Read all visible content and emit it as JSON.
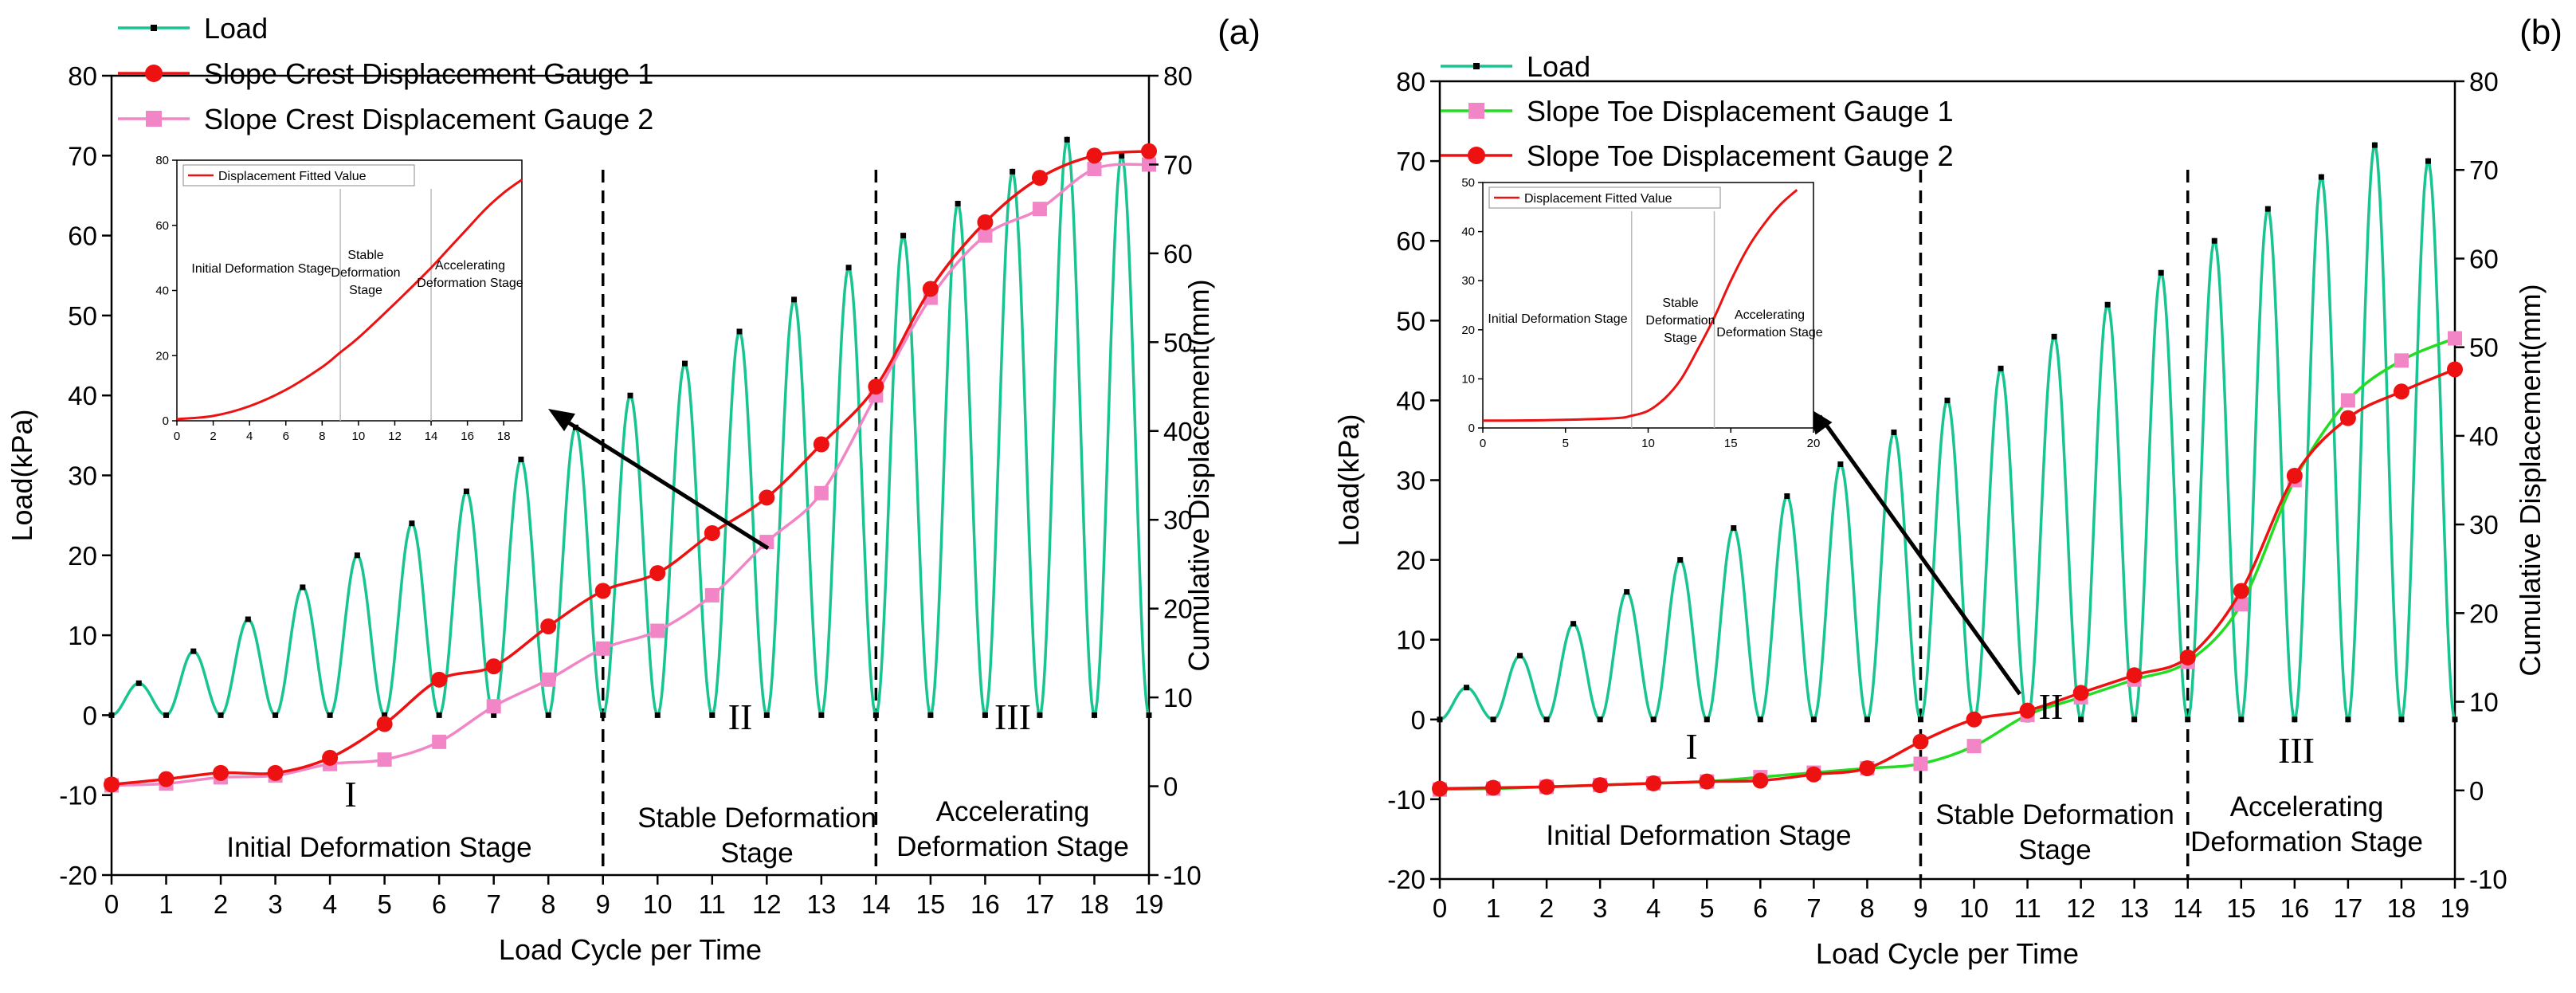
{
  "colors": {
    "load": "#18c48f",
    "gauge_red": "#ee1111",
    "gauge_pink": "#f285c6",
    "gauge_green": "#22dd22",
    "fit": "#ee1111",
    "axis": "#000000",
    "divider": "#bbbbbb"
  },
  "chart_data": [
    {
      "type": "line",
      "panel_label": "(a)",
      "xlabel": "Load Cycle per Time",
      "ylabel_left": "Load(kPa)",
      "ylabel_right": "Cumulative Displacement(mm)",
      "xlim": [
        0,
        19
      ],
      "ylim_left": [
        -20,
        80
      ],
      "ylim_right": [
        -10,
        80
      ],
      "x_ticks": [
        "0",
        "1",
        "2",
        "3",
        "4",
        "5",
        "6",
        "7",
        "8",
        "9",
        "10",
        "11",
        "12",
        "13",
        "14",
        "15",
        "16",
        "17",
        "18",
        "19"
      ],
      "y_ticks_left": [
        "-20",
        "-10",
        "0",
        "10",
        "20",
        "30",
        "40",
        "50",
        "60",
        "70",
        "80"
      ],
      "y_ticks_right": [
        "-10",
        "0",
        "10",
        "20",
        "30",
        "40",
        "50",
        "60",
        "70",
        "80"
      ],
      "legend": [
        "Load",
        "Slope Crest Displacement Gauge 1",
        "Slope Crest Displacement Gauge 2"
      ],
      "load_series": {
        "name": "Load",
        "peak_x": [
          0.5,
          1.5,
          2.5,
          3.5,
          4.5,
          5.5,
          6.5,
          7.5,
          8.5,
          9.5,
          10.5,
          11.5,
          12.5,
          13.5,
          14.5,
          15.5,
          16.5,
          17.5,
          18.5
        ],
        "peak_kpa": [
          4,
          8,
          12,
          16,
          20,
          24,
          28,
          32,
          36,
          40,
          44,
          48,
          52,
          56,
          60,
          64,
          68,
          72,
          70
        ]
      },
      "series": [
        {
          "name": "Slope Crest Displacement Gauge 1",
          "color": "#ee1111",
          "marker": "circle",
          "x": [
            0,
            1,
            2,
            3,
            4,
            5,
            6,
            7,
            8,
            9,
            10,
            11,
            12,
            13,
            14,
            15,
            16,
            17,
            18,
            19
          ],
          "values": [
            0.2,
            0.8,
            1.5,
            1.5,
            3.2,
            7.0,
            12.0,
            13.5,
            18.0,
            22.0,
            24.0,
            28.5,
            32.5,
            38.5,
            45.0,
            56.0,
            63.5,
            68.5,
            71.0,
            71.5
          ]
        },
        {
          "name": "Slope Crest Displacement Gauge 2",
          "color": "#f285c6",
          "marker": "square",
          "x": [
            0,
            1,
            2,
            3,
            4,
            5,
            6,
            7,
            8,
            9,
            10,
            11,
            12,
            13,
            14,
            15,
            16,
            17,
            18,
            19
          ],
          "values": [
            0.1,
            0.3,
            1.0,
            1.2,
            2.5,
            3.0,
            5.0,
            9.0,
            12.0,
            15.5,
            17.5,
            21.5,
            27.5,
            33.0,
            44.0,
            55.0,
            62.0,
            65.0,
            69.5,
            70.0
          ]
        }
      ],
      "stage_dividers_x": [
        9,
        14
      ],
      "stages": [
        {
          "numeral": "I",
          "name": "Initial Deformation Stage"
        },
        {
          "numeral": "II",
          "name": "Stable Deformation Stage"
        },
        {
          "numeral": "III",
          "name": "Accelerating Deformation Stage"
        }
      ],
      "inset": {
        "legend": "Displacement Fitted Value",
        "xlim": [
          0,
          19
        ],
        "ylim": [
          0,
          80
        ],
        "x_ticks": [
          "0",
          "2",
          "4",
          "6",
          "8",
          "10",
          "12",
          "14",
          "16",
          "18"
        ],
        "y_ticks": [
          "0",
          "20",
          "40",
          "60",
          "80"
        ],
        "dividers_x": [
          9,
          14
        ],
        "stage_labels": [
          "Initial Deformation Stage",
          "Stable Deformation Stage",
          "Accelerating Deformation Stage"
        ],
        "fit_x": [
          0,
          2,
          4,
          6,
          8,
          9,
          10,
          12,
          14,
          15,
          16,
          17,
          18,
          19
        ],
        "fit_y": [
          0.5,
          1.5,
          4.5,
          9.5,
          16.5,
          21,
          25.5,
          36,
          47,
          53,
          59,
          65,
          70,
          74
        ]
      }
    },
    {
      "type": "line",
      "panel_label": "(b)",
      "xlabel": "Load Cycle per Time",
      "ylabel_left": "Load(kPa)",
      "ylabel_right": "Cumulative Displacement(mm)",
      "xlim": [
        0,
        19
      ],
      "ylim_left": [
        -20,
        80
      ],
      "ylim_right": [
        -10,
        80
      ],
      "x_ticks": [
        "0",
        "1",
        "2",
        "3",
        "4",
        "5",
        "6",
        "7",
        "8",
        "9",
        "10",
        "11",
        "12",
        "13",
        "14",
        "15",
        "16",
        "17",
        "18",
        "19"
      ],
      "y_ticks_left": [
        "-20",
        "-10",
        "0",
        "10",
        "20",
        "30",
        "40",
        "50",
        "60",
        "70",
        "80"
      ],
      "y_ticks_right": [
        "-10",
        "0",
        "10",
        "20",
        "30",
        "40",
        "50",
        "60",
        "70",
        "80"
      ],
      "legend": [
        "Load",
        "Slope Toe Displacement Gauge 1",
        "Slope Toe Displacement Gauge 2"
      ],
      "load_series": {
        "name": "Load",
        "peak_x": [
          0.5,
          1.5,
          2.5,
          3.5,
          4.5,
          5.5,
          6.5,
          7.5,
          8.5,
          9.5,
          10.5,
          11.5,
          12.5,
          13.5,
          14.5,
          15.5,
          16.5,
          17.5,
          18.5
        ],
        "peak_kpa": [
          4,
          8,
          12,
          16,
          20,
          24,
          28,
          32,
          36,
          40,
          44,
          48,
          52,
          56,
          60,
          64,
          68,
          72,
          70
        ]
      },
      "series": [
        {
          "name": "Slope Toe Displacement Gauge 1",
          "color": "#22dd22",
          "marker": "square",
          "marker_color": "#f285c6",
          "x": [
            0,
            1,
            2,
            3,
            4,
            5,
            6,
            7,
            8,
            9,
            10,
            11,
            12,
            13,
            14,
            15,
            16,
            17,
            18,
            19
          ],
          "values": [
            0.1,
            0.2,
            0.4,
            0.6,
            0.8,
            1.0,
            1.5,
            2.0,
            2.5,
            3.0,
            5.0,
            8.5,
            10.5,
            12.5,
            14.5,
            21.0,
            35.0,
            44.0,
            48.5,
            51.0
          ]
        },
        {
          "name": "Slope Toe Displacement Gauge 2",
          "color": "#ee1111",
          "marker": "circle",
          "x": [
            0,
            1,
            2,
            3,
            4,
            5,
            6,
            7,
            8,
            9,
            10,
            11,
            12,
            13,
            14,
            15,
            16,
            17,
            18,
            19
          ],
          "values": [
            0.2,
            0.3,
            0.4,
            0.6,
            0.8,
            1.0,
            1.1,
            1.8,
            2.5,
            5.5,
            8.0,
            9.0,
            11.0,
            13.0,
            15.0,
            22.5,
            35.5,
            42.0,
            45.0,
            47.5
          ]
        }
      ],
      "stage_dividers_x": [
        9,
        14
      ],
      "stages": [
        {
          "numeral": "I",
          "name": "Initial Deformation Stage"
        },
        {
          "numeral": "II",
          "name": "Stable Deformation Stage"
        },
        {
          "numeral": "III",
          "name": "Accelerating Deformation Stage"
        }
      ],
      "inset": {
        "legend": "Displacement Fitted Value",
        "xlim": [
          0,
          20
        ],
        "ylim": [
          0,
          50
        ],
        "x_ticks": [
          "0",
          "5",
          "10",
          "15",
          "20"
        ],
        "y_ticks": [
          "0",
          "10",
          "20",
          "30",
          "40",
          "50"
        ],
        "dividers_x": [
          9,
          14
        ],
        "stage_labels": [
          "Initial Deformation Stage",
          "Stable Deformation Stage",
          "Accelerating Deformation Stage"
        ],
        "fit_x": [
          0,
          4,
          8,
          9,
          10,
          11,
          12,
          13,
          14,
          15,
          16,
          17,
          18,
          19
        ],
        "fit_y": [
          1.5,
          1.6,
          2.0,
          2.5,
          3.5,
          6,
          10,
          16,
          22.5,
          30,
          36.5,
          41.5,
          45.5,
          48.5
        ]
      }
    }
  ]
}
